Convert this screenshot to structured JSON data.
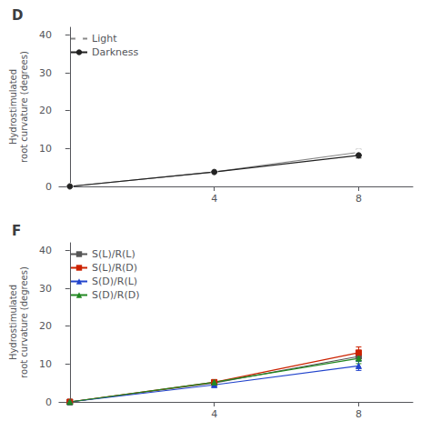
{
  "chart_data": [
    {
      "type": "line",
      "title": "D",
      "x": [
        0,
        4,
        8
      ],
      "series": [
        {
          "name": "Light",
          "color": "#888888",
          "marker": "open_circle",
          "values": [
            0,
            3.8,
            9.0
          ],
          "err": [
            0,
            0.3,
            0.8
          ]
        },
        {
          "name": "Darkness",
          "color": "#222222",
          "marker": "circle",
          "values": [
            0,
            3.8,
            8.2
          ],
          "err": [
            0,
            0.3,
            0.7
          ]
        }
      ],
      "ylabel": "Hydrostimulated\nroot curvature (degrees)",
      "xlim": [
        -0.3,
        9.5
      ],
      "xticks": [
        4,
        8
      ],
      "ylim": [
        0,
        42
      ],
      "yticks": [
        0,
        10,
        20,
        30,
        40
      ],
      "grid": false,
      "legend": "upper left"
    },
    {
      "type": "line",
      "title": "F",
      "x": [
        0,
        4,
        8
      ],
      "series": [
        {
          "name": "S(L)/R(L)",
          "color": "#555555",
          "marker": "square",
          "values": [
            0,
            5.0,
            12.0
          ],
          "err": [
            0,
            0.5,
            1.2
          ]
        },
        {
          "name": "S(L)/R(D)",
          "color": "#cc2200",
          "marker": "square",
          "values": [
            0,
            5.2,
            13.0
          ],
          "err": [
            0,
            0.5,
            1.5
          ]
        },
        {
          "name": "S(D)/R(L)",
          "color": "#2244cc",
          "marker": "triangle",
          "values": [
            0,
            4.5,
            9.5
          ],
          "err": [
            0,
            0.6,
            1.2
          ]
        },
        {
          "name": "S(D)/R(D)",
          "color": "#228822",
          "marker": "triangle",
          "values": [
            0,
            5.2,
            11.5
          ],
          "err": [
            0,
            0.5,
            1.4
          ]
        }
      ],
      "ylabel": "Hydrostimulated\nroot curvature (degrees)",
      "xlim": [
        -0.3,
        9.5
      ],
      "xticks": [
        4,
        8
      ],
      "ylim": [
        0,
        42
      ],
      "yticks": [
        0,
        10,
        20,
        30,
        40
      ],
      "grid": false,
      "legend": "upper left"
    }
  ]
}
